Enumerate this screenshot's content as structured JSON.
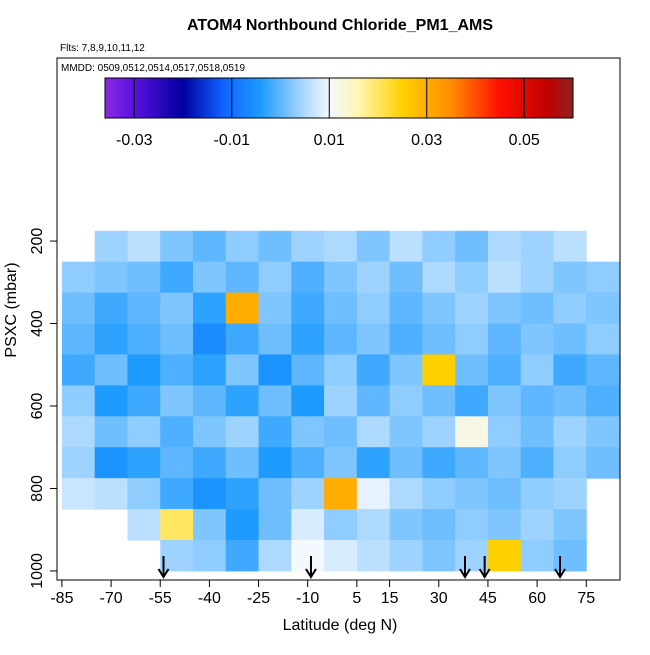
{
  "chart_data": {
    "type": "heatmap",
    "title": "ATOM4 Northbound Chloride_PM1_AMS",
    "subtitle": "Flts: 7,8,9,10,11,12",
    "annotation": "MMDD: 0509,0512,0514,0517,0518,0519",
    "x_label": "Latitude (deg N)",
    "y_label": "PSXC (mbar)",
    "xlim": [
      -86.5,
      85.3
    ],
    "xticks": [
      -85,
      -70,
      -55,
      -40,
      -25,
      -10,
      5,
      15,
      30,
      45,
      60,
      75
    ],
    "ylim": [
      1022,
      -244
    ],
    "yticks": [
      200,
      400,
      600,
      800,
      1000
    ],
    "x_edges": [
      -85,
      -75,
      -65,
      -55,
      -45,
      -35,
      -25,
      -15,
      -5,
      5,
      15,
      25,
      35,
      45,
      55,
      65,
      75,
      85
    ],
    "y_edges": [
      175,
      250,
      325,
      400,
      475,
      550,
      625,
      700,
      775,
      850,
      925,
      1000
    ],
    "values": [
      [
        null,
        0.004,
        0.006,
        0.002,
        0.0,
        0.003,
        0.001,
        0.004,
        0.005,
        0.002,
        0.006,
        0.003,
        0.001,
        0.005,
        0.004,
        0.006,
        null
      ],
      [
        0.003,
        0.002,
        0.001,
        -0.002,
        0.002,
        0.0,
        0.003,
        -0.001,
        0.002,
        0.004,
        0.001,
        0.005,
        0.003,
        0.006,
        0.004,
        0.002,
        0.003
      ],
      [
        0.001,
        -0.002,
        0.0,
        0.002,
        -0.003,
        0.03,
        0.002,
        -0.002,
        0.001,
        0.003,
        0.0,
        0.002,
        0.004,
        0.002,
        0.001,
        0.003,
        0.002
      ],
      [
        0.0,
        -0.003,
        -0.001,
        0.001,
        -0.006,
        -0.002,
        0.001,
        -0.003,
        0.0,
        0.002,
        -0.001,
        0.001,
        0.003,
        0.0,
        0.002,
        0.001,
        0.003
      ],
      [
        -0.002,
        0.001,
        -0.004,
        -0.001,
        -0.003,
        0.002,
        -0.005,
        0.0,
        0.003,
        -0.002,
        0.002,
        0.025,
        0.001,
        -0.001,
        0.003,
        -0.002,
        0.0
      ],
      [
        0.003,
        -0.004,
        -0.002,
        0.002,
        0.0,
        -0.003,
        0.001,
        -0.004,
        0.004,
        0.0,
        0.003,
        0.001,
        -0.002,
        0.002,
        0.0,
        0.001,
        -0.001
      ],
      [
        0.005,
        0.001,
        0.003,
        -0.001,
        0.002,
        0.004,
        -0.002,
        0.002,
        0.001,
        0.005,
        0.002,
        0.004,
        0.012,
        0.003,
        0.001,
        0.004,
        0.002
      ],
      [
        0.004,
        -0.005,
        -0.003,
        0.0,
        -0.002,
        0.001,
        -0.004,
        -0.001,
        0.002,
        -0.003,
        0.001,
        -0.002,
        0.0,
        0.002,
        -0.001,
        0.003,
        0.001
      ],
      [
        0.007,
        0.006,
        0.003,
        -0.002,
        -0.005,
        -0.003,
        0.001,
        0.004,
        0.03,
        0.009,
        0.005,
        0.003,
        0.002,
        0.001,
        0.003,
        0.004,
        null
      ],
      [
        null,
        null,
        0.006,
        0.02,
        0.002,
        -0.004,
        0.001,
        0.008,
        0.003,
        0.005,
        0.002,
        0.001,
        0.003,
        0.002,
        0.004,
        0.002,
        null
      ],
      [
        null,
        null,
        null,
        0.004,
        0.003,
        -0.002,
        0.005,
        0.01,
        0.008,
        0.006,
        0.004,
        0.002,
        0.004,
        0.025,
        0.003,
        0.001,
        null
      ]
    ],
    "arrows": [
      -54,
      -9,
      38,
      44,
      67
    ],
    "colorbar": {
      "lim": [
        -0.036,
        0.06
      ],
      "ticks": [
        -0.03,
        -0.01,
        0.01,
        0.03,
        0.05
      ],
      "stops": [
        -0.036,
        -0.03,
        -0.02,
        -0.012,
        -0.004,
        0.004,
        0.01,
        0.016,
        0.025,
        0.035,
        0.045,
        0.055,
        0.06
      ],
      "colors": [
        "#8a2be2",
        "#5a10e0",
        "#0000a0",
        "#1060ff",
        "#1e9bff",
        "#9fd3ff",
        "#f4f8ff",
        "#fff6b0",
        "#ffd000",
        "#ff8c00",
        "#ff1000",
        "#c00000",
        "#8b2323"
      ]
    }
  }
}
